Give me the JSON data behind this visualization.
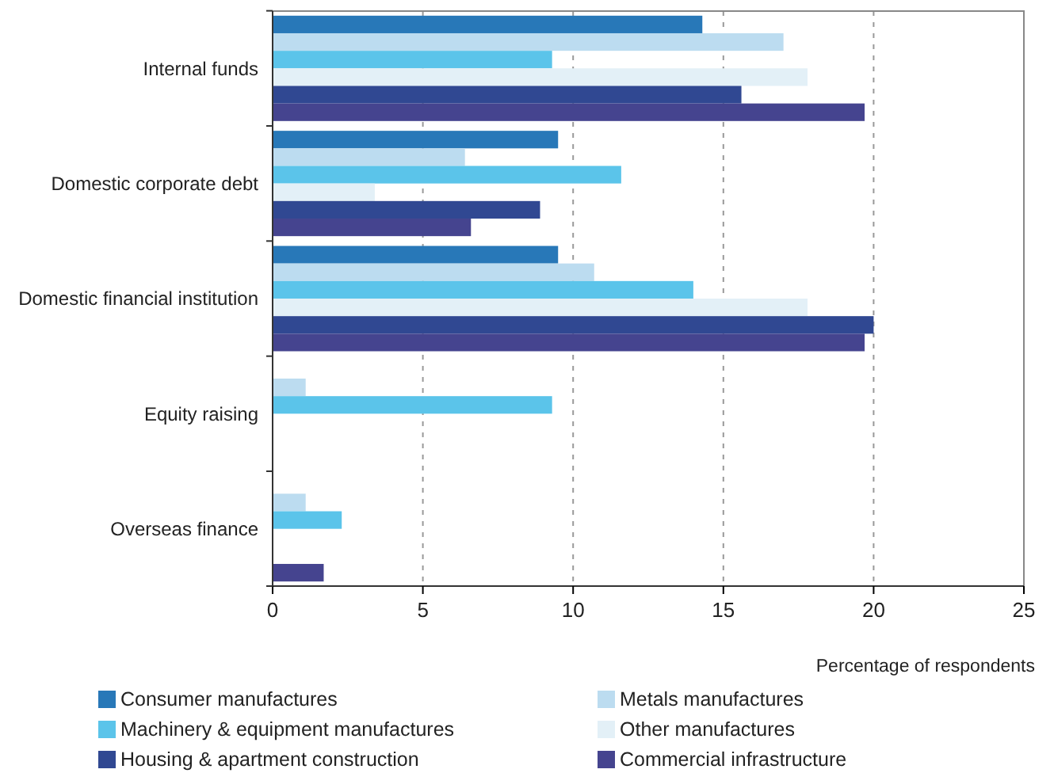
{
  "chart_data": {
    "type": "bar",
    "orientation": "horizontal",
    "xlabel": "Percentage of respondents",
    "categories": [
      "Internal funds",
      "Domestic corporate debt",
      "Domestic financial institution",
      "Equity raising",
      "Overseas finance"
    ],
    "series": [
      {
        "name": "Consumer manufactures",
        "color": "#2878b8",
        "values": [
          14.3,
          9.5,
          9.5,
          0,
          0
        ]
      },
      {
        "name": "Metals manufactures",
        "color": "#bcdcf0",
        "values": [
          17.0,
          6.4,
          10.7,
          1.1,
          1.1
        ]
      },
      {
        "name": "Machinery & equipment manufactures",
        "color": "#5bc4ea",
        "values": [
          9.3,
          11.6,
          14.0,
          9.3,
          2.3
        ]
      },
      {
        "name": "Other manufactures",
        "color": "#e3f0f7",
        "values": [
          17.8,
          3.4,
          17.8,
          0,
          0
        ]
      },
      {
        "name": "Housing & apartment construction",
        "color": "#304892",
        "values": [
          15.6,
          8.9,
          20.0,
          0,
          0
        ]
      },
      {
        "name": "Commercial infrastructure",
        "color": "#45448f",
        "values": [
          19.7,
          6.6,
          19.7,
          0,
          1.7
        ]
      }
    ],
    "xlim": [
      0,
      25
    ],
    "xticks": [
      0,
      5,
      10,
      15,
      20,
      25
    ],
    "grid": "x",
    "legend": "bottom"
  }
}
